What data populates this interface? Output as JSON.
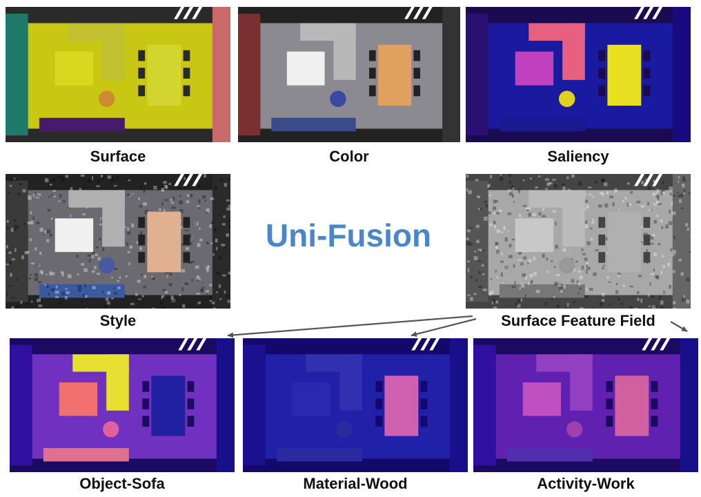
{
  "title": "Uni-Fusion",
  "source_label": "Surface Feature Field",
  "panels": [
    {
      "id": "surface",
      "label": "Surface",
      "theme": "surface"
    },
    {
      "id": "color",
      "label": "Color",
      "theme": "color"
    },
    {
      "id": "saliency",
      "label": "Saliency",
      "theme": "saliency"
    },
    {
      "id": "style",
      "label": "Style",
      "theme": "style"
    },
    {
      "id": "feature",
      "label": "Surface Feature Field",
      "theme": "feature"
    },
    {
      "id": "object-sofa",
      "label": "Object-Sofa",
      "theme": "sofa"
    },
    {
      "id": "material-wood",
      "label": "Material-Wood",
      "theme": "wood"
    },
    {
      "id": "activity-work",
      "label": "Activity-Work",
      "theme": "work"
    }
  ],
  "colors": {
    "title": "#4a86c8",
    "arrow": "#555555"
  }
}
